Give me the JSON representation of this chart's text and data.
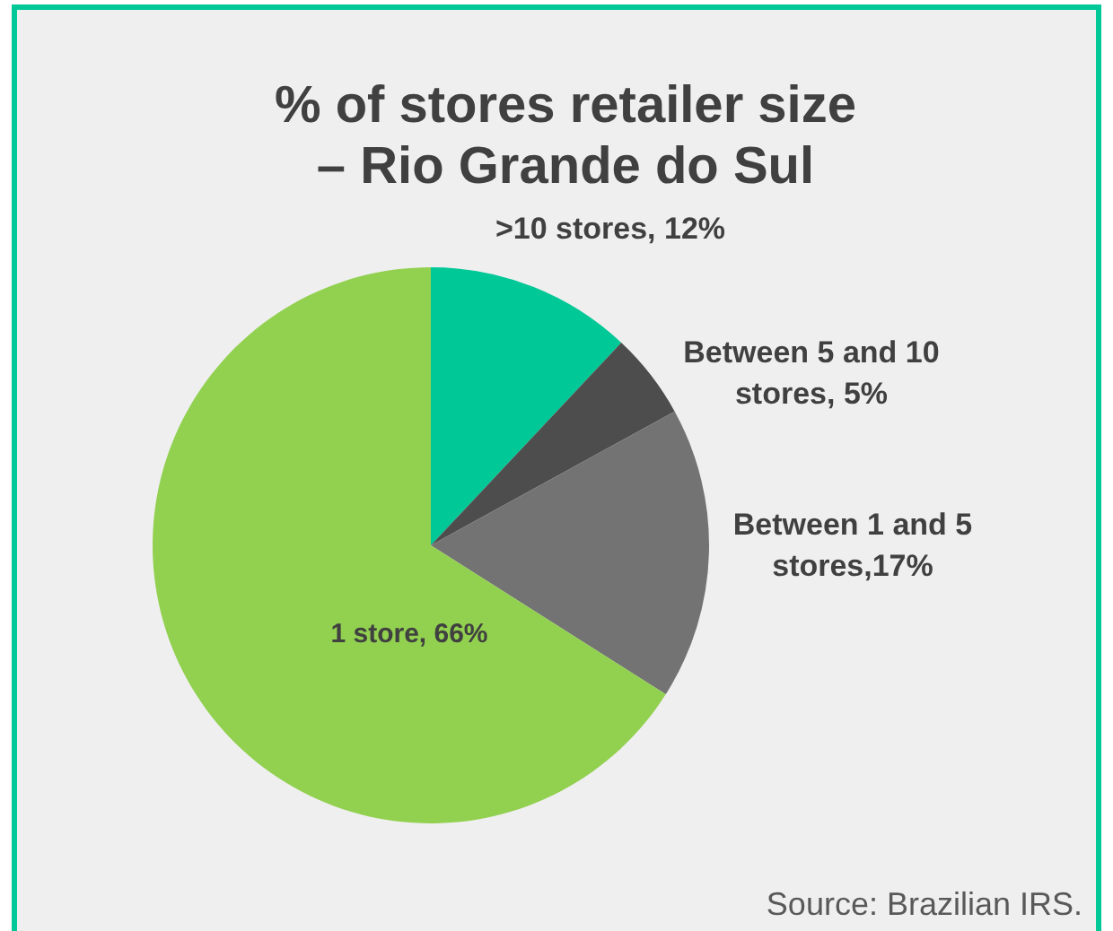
{
  "chart_data": {
    "type": "pie",
    "title": "% of stores retailer size\n– Rio Grande do Sul",
    "categories": [
      ">10 stores, 12%",
      "Between 5 and 10 stores, 5%",
      "Between 1 and 5 stores,17%",
      "1 store, 66%"
    ],
    "values": [
      12,
      5,
      17,
      66
    ],
    "colors": [
      "#00c896",
      "#4d4d4d",
      "#737373",
      "#92d050"
    ],
    "annotations": [
      "Source: Brazilian IRS."
    ]
  }
}
